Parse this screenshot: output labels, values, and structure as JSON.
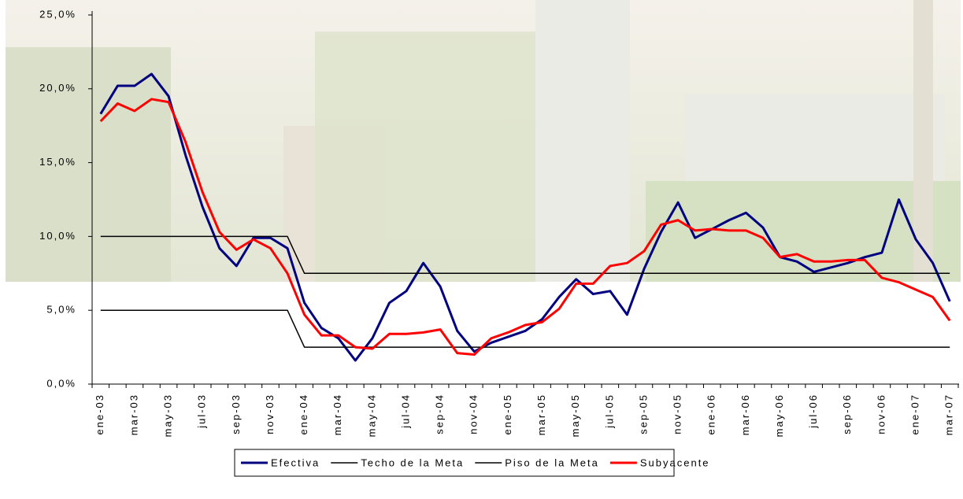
{
  "chart_data": {
    "type": "line",
    "categories": [
      "ene-03",
      null,
      "mar-03",
      null,
      "may-03",
      null,
      "jul-03",
      null,
      "sep-03",
      null,
      "nov-03",
      null,
      "ene-04",
      null,
      "mar-04",
      null,
      "may-04",
      null,
      "jul-04",
      null,
      "sep-04",
      null,
      "nov-04",
      null,
      "ene-05",
      null,
      "mar-05",
      null,
      "may-05",
      null,
      "jul-05",
      null,
      "sep-05",
      null,
      "nov-05",
      null,
      "ene-06",
      null,
      "mar-06",
      null,
      "may-06",
      null,
      "jul-06",
      null,
      "sep-06",
      null,
      "nov-06",
      null,
      "ene-07",
      null,
      "mar-07"
    ],
    "series": [
      {
        "name": "Efectiva",
        "color": "#000080",
        "line_width": 3,
        "values": [
          18.3,
          20.2,
          20.2,
          21.0,
          19.5,
          15.5,
          12.0,
          9.2,
          8.0,
          9.9,
          9.9,
          9.2,
          5.5,
          3.8,
          3.1,
          1.6,
          3.1,
          5.5,
          6.3,
          8.2,
          6.6,
          3.6,
          2.2,
          2.8,
          3.2,
          3.6,
          4.4,
          5.9,
          7.1,
          6.1,
          6.3,
          4.7,
          7.8,
          10.3,
          12.3,
          9.9,
          10.5,
          11.1,
          11.6,
          10.6,
          8.6,
          8.3,
          7.6,
          7.9,
          8.2,
          8.6,
          8.9,
          12.5,
          9.8,
          8.2,
          5.6
        ]
      },
      {
        "name": "Techo de la Meta",
        "color": "#000000",
        "line_width": 1.5,
        "values": [
          10,
          10,
          10,
          10,
          10,
          10,
          10,
          10,
          10,
          10,
          10,
          10,
          7.5,
          7.5,
          7.5,
          7.5,
          7.5,
          7.5,
          7.5,
          7.5,
          7.5,
          7.5,
          7.5,
          7.5,
          7.5,
          7.5,
          7.5,
          7.5,
          7.5,
          7.5,
          7.5,
          7.5,
          7.5,
          7.5,
          7.5,
          7.5,
          7.5,
          7.5,
          7.5,
          7.5,
          7.5,
          7.5,
          7.5,
          7.5,
          7.5,
          7.5,
          7.5,
          7.5,
          7.5,
          7.5,
          7.5
        ]
      },
      {
        "name": "Piso de la Meta",
        "color": "#000000",
        "line_width": 1.5,
        "values": [
          5,
          5,
          5,
          5,
          5,
          5,
          5,
          5,
          5,
          5,
          5,
          5,
          2.5,
          2.5,
          2.5,
          2.5,
          2.5,
          2.5,
          2.5,
          2.5,
          2.5,
          2.5,
          2.5,
          2.5,
          2.5,
          2.5,
          2.5,
          2.5,
          2.5,
          2.5,
          2.5,
          2.5,
          2.5,
          2.5,
          2.5,
          2.5,
          2.5,
          2.5,
          2.5,
          2.5,
          2.5,
          2.5,
          2.5,
          2.5,
          2.5,
          2.5,
          2.5,
          2.5,
          2.5,
          2.5,
          2.5
        ]
      },
      {
        "name": "Subyacente",
        "color": "#ff0000",
        "line_width": 3,
        "values": [
          17.8,
          19.0,
          18.5,
          19.3,
          19.1,
          16.4,
          13.0,
          10.3,
          9.1,
          9.8,
          9.2,
          7.5,
          4.7,
          3.3,
          3.3,
          2.5,
          2.4,
          3.4,
          3.4,
          3.5,
          3.7,
          2.1,
          2.0,
          3.1,
          3.5,
          4.0,
          4.2,
          5.1,
          6.8,
          6.8,
          8.0,
          8.2,
          9.0,
          10.8,
          11.1,
          10.4,
          10.5,
          10.4,
          10.4,
          9.9,
          8.6,
          8.8,
          8.3,
          8.3,
          8.4,
          8.4,
          7.2,
          6.9,
          6.4,
          5.9,
          4.3
        ]
      }
    ],
    "ylim": [
      0,
      25
    ],
    "yticks": [
      {
        "value": 0,
        "label": "0,0%"
      },
      {
        "value": 5,
        "label": "5,0%"
      },
      {
        "value": 10,
        "label": "10,0%"
      },
      {
        "value": 15,
        "label": "15,0%"
      },
      {
        "value": 20,
        "label": "20,0%"
      },
      {
        "value": 25,
        "label": "25,0%"
      }
    ],
    "grid": false,
    "legend": "bottom"
  }
}
